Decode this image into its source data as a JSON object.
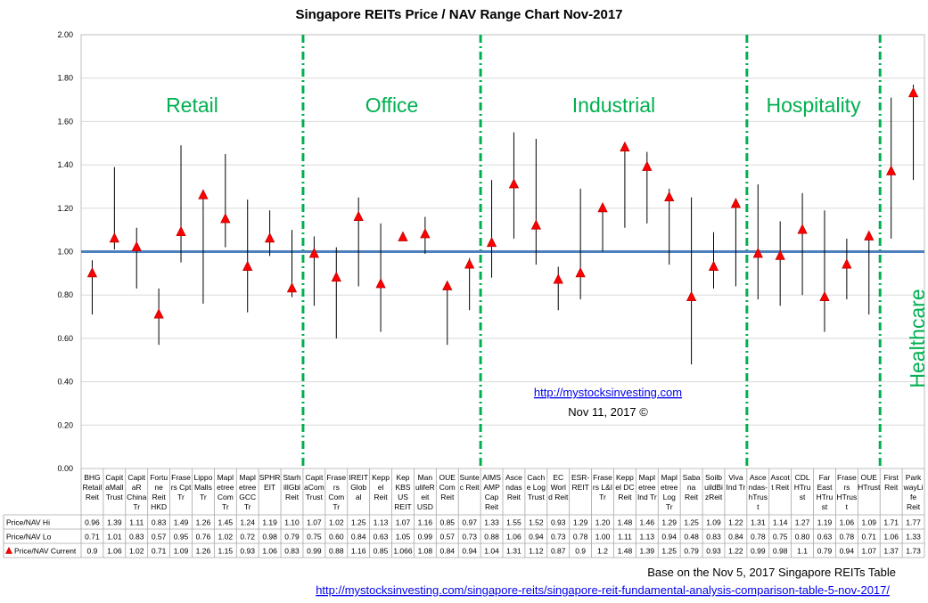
{
  "chart_data": {
    "type": "scatter",
    "title": "Singapore REITs Price / NAV Range Chart Nov-2017",
    "ylim": [
      0,
      2
    ],
    "yticks": [
      "0.00",
      "0.20",
      "0.40",
      "0.60",
      "0.80",
      "1.00",
      "1.20",
      "1.40",
      "1.60",
      "1.80",
      "2.00"
    ],
    "reference_line": 1.0,
    "grid": true,
    "categories": [
      "BHG Retail Reit",
      "CapitaMall Trust",
      "CapitaR China Tr",
      "Fortune Reit HKD",
      "Frasers Cpt Tr",
      "Lippo Malls Tr",
      "Mapletree Com Tr",
      "Mapletree GCC Tr",
      "SPHREIT",
      "Starhill Gbl Reit",
      "CapitaCom Trust",
      "Frasers Com Tr",
      "IREIT Global",
      "Keppel Reit",
      "Kep KBS US REIT",
      "Manulife Reit USD",
      "OUE Com Reit",
      "Suntec Reit",
      "AIMS AMP Cap Reit",
      "Ascendas Reit",
      "Cache Log Trust",
      "EC World Reit",
      "ESR-REIT",
      "Frasers L&I Tr",
      "Keppel DC Reit",
      "Mapletree Ind Tr",
      "Mapletree Log Tr",
      "Sabana Reit",
      "Soilbuild Biz Reit",
      "Viva Ind Tr",
      "Ascendas-hTrust",
      "Ascott Reit",
      "CDL HTrust",
      "Far East HTrust",
      "Frasers HTrust",
      "OUE HTrust",
      "First Reit",
      "ParkwayLife Reit"
    ],
    "category_lines": [
      [
        "BHG",
        "Retail",
        "Reit"
      ],
      [
        "Capit",
        "aMall",
        "Trust"
      ],
      [
        "Capit",
        "aR",
        "China",
        "Tr"
      ],
      [
        "Fortu",
        "ne",
        "Reit",
        "HKD"
      ],
      [
        "Frase",
        "rs Cpt",
        "Tr"
      ],
      [
        "Lippo",
        "Malls",
        "Tr"
      ],
      [
        "Mapl",
        "etree",
        "Com",
        "Tr"
      ],
      [
        "Mapl",
        "etree",
        "GCC",
        "Tr"
      ],
      [
        "SPHR",
        "EIT"
      ],
      [
        "Starh",
        "illGbl",
        "Reit"
      ],
      [
        "Capit",
        "aCom",
        "Trust"
      ],
      [
        "Frase",
        "rs",
        "Com",
        "Tr"
      ],
      [
        "IREIT",
        "Glob",
        "al"
      ],
      [
        "Kepp",
        "el",
        "Reit"
      ],
      [
        "Kep",
        "KBS",
        "US",
        "REIT"
      ],
      [
        "Man",
        "ulifeR",
        "eit",
        "USD"
      ],
      [
        "OUE",
        "Com",
        "Reit"
      ],
      [
        "Sunte",
        "c Reit"
      ],
      [
        "AIMS",
        "AMP",
        "Cap",
        "Reit"
      ],
      [
        "Asce",
        "ndas",
        "Reit"
      ],
      [
        "Cach",
        "e Log",
        "Trust"
      ],
      [
        "EC",
        "Worl",
        "d Reit"
      ],
      [
        "ESR-",
        "REIT"
      ],
      [
        "Frase",
        "rs L&I",
        "Tr"
      ],
      [
        "Kepp",
        "el DC",
        "Reit"
      ],
      [
        "Mapl",
        "etree",
        "Ind Tr"
      ],
      [
        "Mapl",
        "etree",
        "Log",
        "Tr"
      ],
      [
        "Saba",
        "na",
        "Reit"
      ],
      [
        "Soilb",
        "uildBi",
        "zReit"
      ],
      [
        "Viva",
        "Ind Tr"
      ],
      [
        "Asce",
        "ndas-",
        "hTrus",
        "t"
      ],
      [
        "Ascot",
        "t Reit"
      ],
      [
        "CDL",
        "HTru",
        "st"
      ],
      [
        "Far",
        "East",
        "HTru",
        "st"
      ],
      [
        "Frase",
        "rs",
        "HTrus",
        "t"
      ],
      [
        "OUE",
        "HTrust"
      ],
      [
        "First",
        "Reit"
      ],
      [
        "Park",
        "wayLi",
        "fe",
        "Reit"
      ]
    ],
    "series": [
      {
        "name": "Price/NAV Hi",
        "values": [
          0.96,
          1.39,
          1.11,
          0.83,
          1.49,
          1.26,
          1.45,
          1.24,
          1.19,
          1.1,
          1.07,
          1.02,
          1.25,
          1.13,
          1.07,
          1.16,
          0.85,
          0.97,
          1.33,
          1.55,
          1.52,
          0.93,
          1.29,
          1.2,
          1.48,
          1.46,
          1.29,
          1.25,
          1.09,
          1.22,
          1.31,
          1.14,
          1.27,
          1.19,
          1.06,
          1.09,
          1.71,
          1.77
        ]
      },
      {
        "name": "Price/NAV Lo",
        "values": [
          0.71,
          1.01,
          0.83,
          0.57,
          0.95,
          0.76,
          1.02,
          0.72,
          0.98,
          0.79,
          0.75,
          0.6,
          0.84,
          0.63,
          1.05,
          0.99,
          0.57,
          0.73,
          0.88,
          1.06,
          0.94,
          0.73,
          0.78,
          1.0,
          1.11,
          1.13,
          0.94,
          0.48,
          0.83,
          0.84,
          0.78,
          0.75,
          0.8,
          0.63,
          0.78,
          0.71,
          1.06,
          1.33
        ]
      },
      {
        "name": "Price/NAV Current",
        "values": [
          0.9,
          1.06,
          1.02,
          0.71,
          1.09,
          1.26,
          1.15,
          0.93,
          1.06,
          0.83,
          0.99,
          0.88,
          1.16,
          0.85,
          1.066,
          1.08,
          0.84,
          0.94,
          1.04,
          1.31,
          1.12,
          0.87,
          0.9,
          1.2,
          1.48,
          1.39,
          1.25,
          0.79,
          0.93,
          1.22,
          0.99,
          0.98,
          1.1,
          0.79,
          0.94,
          1.07,
          1.37,
          1.73
        ]
      }
    ],
    "table_values": {
      "hi": [
        "0.96",
        "1.39",
        "1.11",
        "0.83",
        "1.49",
        "1.26",
        "1.45",
        "1.24",
        "1.19",
        "1.10",
        "1.07",
        "1.02",
        "1.25",
        "1.13",
        "1.07",
        "1.16",
        "0.85",
        "0.97",
        "1.33",
        "1.55",
        "1.52",
        "0.93",
        "1.29",
        "1.20",
        "1.48",
        "1.46",
        "1.29",
        "1.25",
        "1.09",
        "1.22",
        "1.31",
        "1.14",
        "1.27",
        "1.19",
        "1.06",
        "1.09",
        "1.71",
        "1.77"
      ],
      "lo": [
        "0.71",
        "1.01",
        "0.83",
        "0.57",
        "0.95",
        "0.76",
        "1.02",
        "0.72",
        "0.98",
        "0.79",
        "0.75",
        "0.60",
        "0.84",
        "0.63",
        "1.05",
        "0.99",
        "0.57",
        "0.73",
        "0.88",
        "1.06",
        "0.94",
        "0.73",
        "0.78",
        "1.00",
        "1.11",
        "1.13",
        "0.94",
        "0.48",
        "0.83",
        "0.84",
        "0.78",
        "0.75",
        "0.80",
        "0.63",
        "0.78",
        "0.71",
        "1.06",
        "1.33"
      ],
      "current": [
        "0.9",
        "1.06",
        "1.02",
        "0.71",
        "1.09",
        "1.26",
        "1.15",
        "0.93",
        "1.06",
        "0.83",
        "0.99",
        "0.88",
        "1.16",
        "0.85",
        "1.066",
        "1.08",
        "0.84",
        "0.94",
        "1.04",
        "1.31",
        "1.12",
        "0.87",
        "0.9",
        "1.2",
        "1.48",
        "1.39",
        "1.25",
        "0.79",
        "0.93",
        "1.22",
        "0.99",
        "0.98",
        "1.1",
        "0.79",
        "0.94",
        "1.07",
        "1.37",
        "1.73"
      ]
    },
    "sectors": [
      {
        "label": "Retail",
        "start": 0,
        "end": 9
      },
      {
        "label": "Office",
        "start": 10,
        "end": 17
      },
      {
        "label": "Industrial",
        "start": 18,
        "end": 29
      },
      {
        "label": "Hospitality",
        "start": 30,
        "end": 35
      },
      {
        "label": "Healthcare",
        "start": 36,
        "end": 37
      }
    ],
    "annotation_link": "http://mystocksinvesting.com",
    "annotation_date": "Nov 11, 2017 ©",
    "footer_note": "Base on the Nov 5, 2017 Singapore REITs Table",
    "footer_link": "http://mystocksinvesting.com/singapore-reits/singapore-reit-fundamental-analysis-comparison-table-5-nov-2017/",
    "colors": {
      "marker": "#ff0000",
      "marker_edge": "#c00000",
      "range_line": "#000000",
      "reference_line": "#4f81bd",
      "sector_divider": "#00b050",
      "sector_label": "#00b050",
      "grid": "#d9d9d9"
    }
  }
}
